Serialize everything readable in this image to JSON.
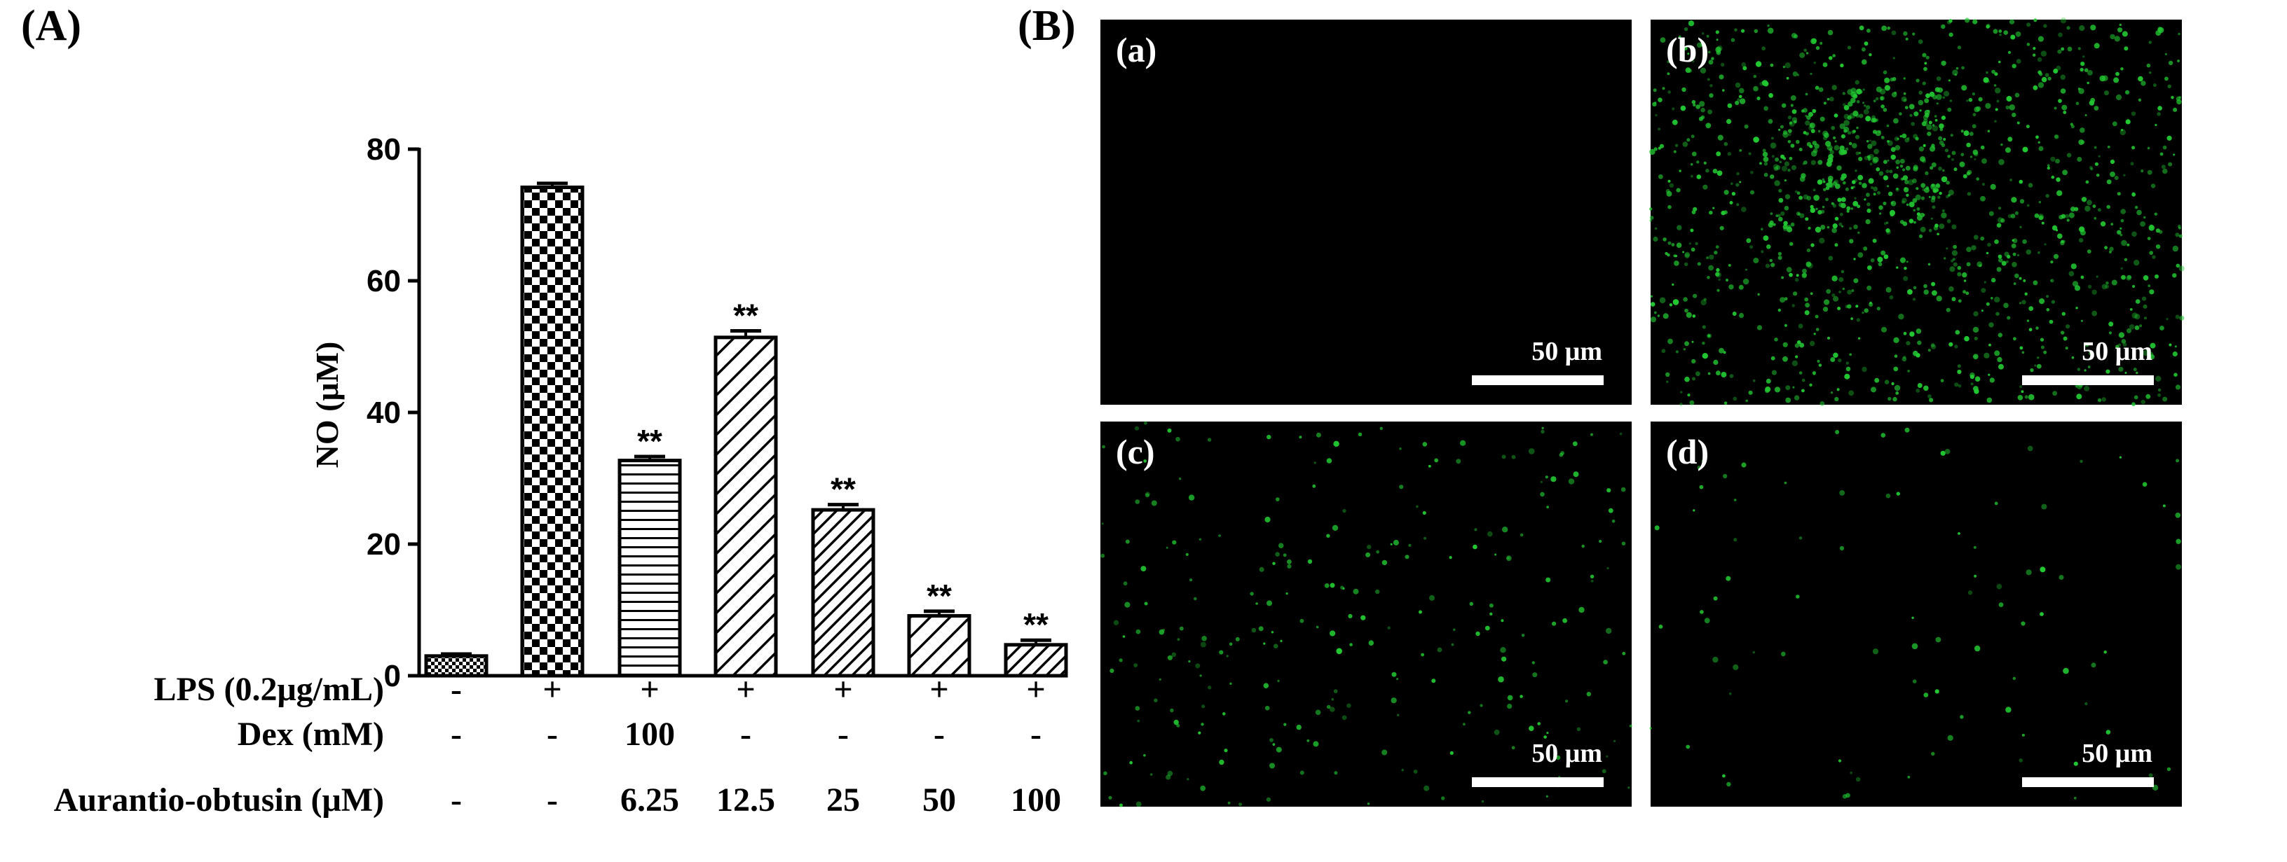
{
  "panel_labels": {
    "a": "(A)",
    "b": "(B)"
  },
  "chart_data": {
    "type": "bar",
    "ylabel": "NO (μM)",
    "ylim": [
      0,
      80
    ],
    "yticks": [
      0,
      20,
      40,
      60,
      80
    ],
    "grid": false,
    "values": [
      3.0,
      74.2,
      32.7,
      51.4,
      25.2,
      9.1,
      4.7
    ],
    "errors": [
      0.3,
      0.6,
      0.6,
      1.0,
      0.8,
      0.7,
      0.7
    ],
    "significance": [
      "",
      "",
      "**",
      "**",
      "**",
      "**",
      "**"
    ],
    "patterns": [
      "dots",
      "checker",
      "hlines",
      "diag",
      "diag-dense",
      "diag",
      "diag-dense"
    ],
    "conditions": [
      {
        "label": "LPS (0.2μg/mL)",
        "values": [
          "-",
          "+",
          "+",
          "+",
          "+",
          "+",
          "+"
        ]
      },
      {
        "label": "Dex  (mM)",
        "values": [
          "-",
          "-",
          "100",
          "-",
          "-",
          "-",
          "-"
        ]
      },
      {
        "label": "Aurantio-obtusin (μM)",
        "values": [
          "-",
          "-",
          "6.25",
          "12.5",
          "25",
          "50",
          "100"
        ]
      }
    ]
  },
  "micrographs": [
    {
      "label": "(a)",
      "scale": "50 μm",
      "density": 0
    },
    {
      "label": "(b)",
      "scale": "50 μm",
      "density": 1400
    },
    {
      "label": "(c)",
      "scale": "50 μm",
      "density": 260
    },
    {
      "label": "(d)",
      "scale": "50 μm",
      "density": 90
    }
  ],
  "colors": {
    "fluorescence": "#22c832",
    "background": "#000000",
    "ink": "#000000"
  }
}
